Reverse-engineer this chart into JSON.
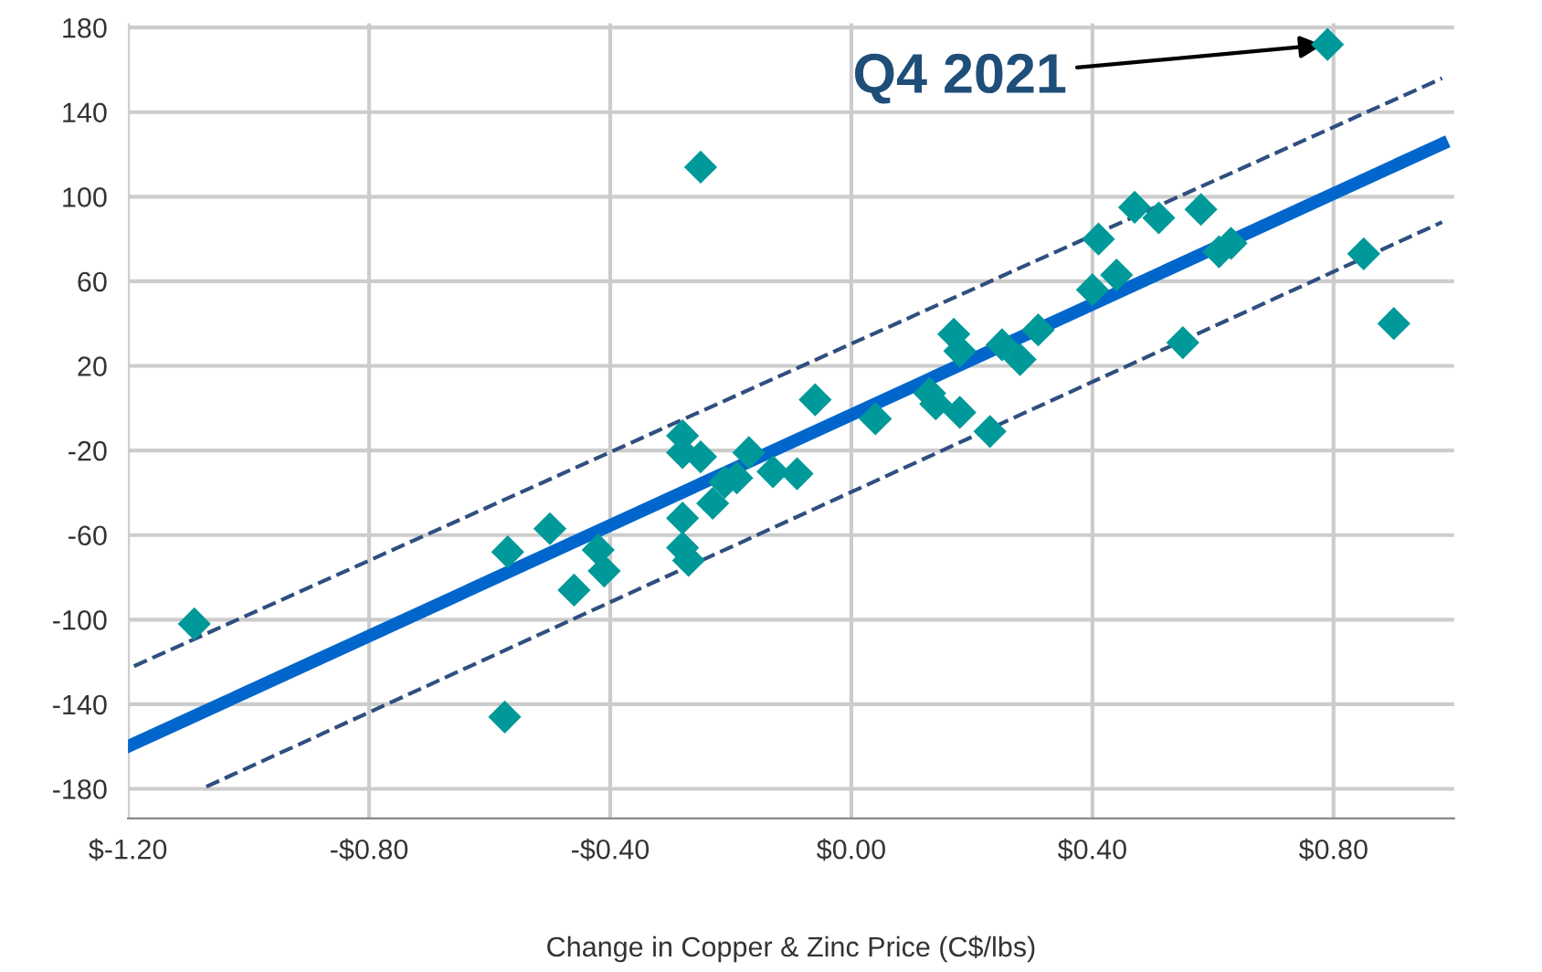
{
  "chart_data": {
    "type": "scatter",
    "xlabel": "Change in Copper & Zinc Price (C$/lbs)",
    "xlim": [
      -1.2,
      1.0
    ],
    "ylim": [
      -194,
      182
    ],
    "xticks": [
      {
        "value": -1.2,
        "label": "$-1.20"
      },
      {
        "value": -0.8,
        "label": "-$0.80"
      },
      {
        "value": -0.4,
        "label": "-$0.40"
      },
      {
        "value": 0,
        "label": "$0.00"
      },
      {
        "value": 0.4,
        "label": "$0.40"
      },
      {
        "value": 0.8,
        "label": "$0.80"
      }
    ],
    "yticks": [
      -180,
      -140,
      -100,
      -60,
      -20,
      20,
      60,
      100,
      140,
      180
    ],
    "grid": true,
    "series": [
      {
        "marker": "diamond",
        "color": "#009999",
        "x": [
          -1.09,
          -0.57,
          -0.575,
          -0.5,
          -0.46,
          -0.42,
          -0.41,
          -0.25,
          -0.28,
          -0.28,
          -0.25,
          -0.28,
          -0.28,
          -0.27,
          -0.23,
          -0.21,
          -0.19,
          -0.17,
          -0.13,
          -0.09,
          -0.06,
          0.04,
          0.13,
          0.14,
          0.18,
          0.17,
          0.18,
          0.23,
          0.25,
          0.28,
          0.31,
          0.4,
          0.41,
          0.44,
          0.47,
          0.51,
          0.55,
          0.58,
          0.61,
          0.63,
          0.79,
          0.85,
          0.9
        ],
        "values": [
          -102,
          -68,
          -146,
          -57,
          -86,
          -67,
          -77,
          114,
          -13,
          -21,
          -23,
          -52,
          -66,
          -72,
          -45,
          -35,
          -33,
          -21,
          -30,
          -31,
          4,
          -5,
          7,
          2,
          -2,
          35,
          27,
          -11,
          30,
          23,
          37,
          56,
          80,
          63,
          95,
          90,
          31,
          94,
          74,
          78,
          172,
          73,
          40
        ]
      },
      {
        "type": "line",
        "color": "#0066cc",
        "line_style": "solid",
        "x": [
          -1.2,
          0.98
        ],
        "values": [
          -160,
          125
        ]
      },
      {
        "type": "line",
        "color": "#2f4f7f",
        "line_style": "dashed",
        "x": [
          -1.19,
          0.98
        ],
        "values": [
          -122,
          156
        ]
      },
      {
        "type": "line",
        "color": "#2f4f7f",
        "line_style": "dashed",
        "x": [
          -1.07,
          0.98
        ],
        "values": [
          -179,
          88
        ]
      }
    ],
    "annotations": [
      {
        "text": "Q4 2021",
        "x": 0.79,
        "y": 172
      }
    ]
  }
}
